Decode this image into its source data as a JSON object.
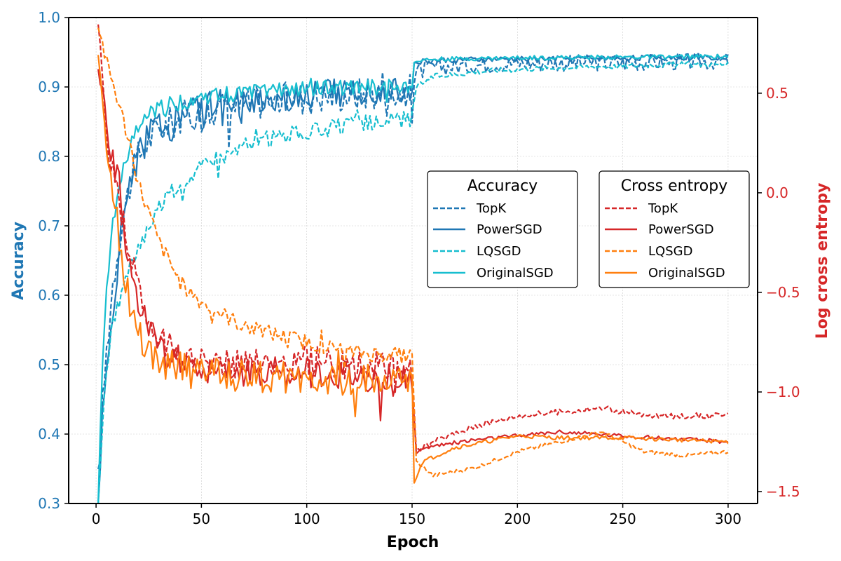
{
  "chart_data": {
    "type": "line",
    "xlabel": "Epoch",
    "y_left_label": "Accuracy",
    "y_right_label": "Log cross entropy",
    "xlim": [
      -13,
      314
    ],
    "ylim_left": [
      0.3,
      1.0
    ],
    "ylim_right": [
      -1.56,
      0.88
    ],
    "x_ticks": [
      0,
      50,
      100,
      150,
      200,
      250,
      300
    ],
    "y_left_ticks": [
      "0.3",
      "0.4",
      "0.5",
      "0.6",
      "0.7",
      "0.8",
      "0.9",
      "1.0"
    ],
    "y_right_ticks": [
      "0.5",
      "0.0",
      "−0.5",
      "−1.0",
      "−1.5"
    ],
    "grid": true,
    "legends": [
      {
        "title": "Accuracy",
        "placement": "center-right",
        "entries": [
          "TopK",
          "PowerSGD",
          "LQSGD",
          "OriginalSGD"
        ]
      },
      {
        "title": "Cross entropy",
        "placement": "right",
        "entries": [
          "TopK",
          "PowerSGD",
          "LQSGD",
          "OriginalSGD"
        ]
      }
    ],
    "colors": {
      "accuracy_axis": "#1f77b4",
      "entropy_axis": "#d62728",
      "accuracy_dark": "#1f77b4",
      "accuracy_light": "#17becf",
      "entropy_red": "#d62728",
      "entropy_orange": "#ff7f0e"
    },
    "series": [
      {
        "group": "Accuracy",
        "name": "TopK",
        "axis": "left",
        "color": "#1f77b4",
        "dash": "dashed",
        "points": [
          [
            1,
            0.33
          ],
          [
            3,
            0.44
          ],
          [
            5,
            0.52
          ],
          [
            8,
            0.62
          ],
          [
            12,
            0.7
          ],
          [
            16,
            0.76
          ],
          [
            20,
            0.8
          ],
          [
            25,
            0.825
          ],
          [
            30,
            0.84
          ],
          [
            40,
            0.855
          ],
          [
            50,
            0.865
          ],
          [
            60,
            0.87
          ],
          [
            70,
            0.875
          ],
          [
            80,
            0.88
          ],
          [
            100,
            0.885
          ],
          [
            120,
            0.89
          ],
          [
            149,
            0.895
          ],
          [
            150,
            0.895
          ],
          [
            152,
            0.92
          ],
          [
            160,
            0.928
          ],
          [
            180,
            0.932
          ],
          [
            200,
            0.934
          ],
          [
            250,
            0.935
          ],
          [
            300,
            0.937
          ]
        ],
        "noise": [
          0.025,
          0.012
        ]
      },
      {
        "group": "Accuracy",
        "name": "PowerSGD",
        "axis": "left",
        "color": "#1f77b4",
        "dash": "solid",
        "points": [
          [
            1,
            0.3
          ],
          [
            3,
            0.42
          ],
          [
            5,
            0.48
          ],
          [
            8,
            0.58
          ],
          [
            12,
            0.69
          ],
          [
            16,
            0.77
          ],
          [
            20,
            0.8
          ],
          [
            25,
            0.83
          ],
          [
            30,
            0.845
          ],
          [
            40,
            0.86
          ],
          [
            50,
            0.87
          ],
          [
            70,
            0.88
          ],
          [
            100,
            0.89
          ],
          [
            120,
            0.895
          ],
          [
            149,
            0.9
          ],
          [
            150,
            0.9
          ],
          [
            151,
            0.935
          ],
          [
            160,
            0.938
          ],
          [
            200,
            0.94
          ],
          [
            250,
            0.942
          ],
          [
            300,
            0.943
          ]
        ],
        "noise": [
          0.022,
          0.004
        ]
      },
      {
        "group": "Accuracy",
        "name": "LQSGD",
        "axis": "left",
        "color": "#17becf",
        "dash": "dashed",
        "points": [
          [
            1,
            0.3
          ],
          [
            3,
            0.4
          ],
          [
            5,
            0.5
          ],
          [
            8,
            0.56
          ],
          [
            12,
            0.6
          ],
          [
            16,
            0.64
          ],
          [
            20,
            0.67
          ],
          [
            25,
            0.7
          ],
          [
            30,
            0.73
          ],
          [
            40,
            0.76
          ],
          [
            50,
            0.785
          ],
          [
            60,
            0.8
          ],
          [
            70,
            0.815
          ],
          [
            80,
            0.825
          ],
          [
            100,
            0.835
          ],
          [
            120,
            0.845
          ],
          [
            149,
            0.855
          ],
          [
            150,
            0.855
          ],
          [
            152,
            0.9
          ],
          [
            160,
            0.915
          ],
          [
            180,
            0.922
          ],
          [
            200,
            0.926
          ],
          [
            240,
            0.93
          ],
          [
            250,
            0.93
          ],
          [
            260,
            0.932
          ],
          [
            300,
            0.933
          ]
        ],
        "noise": [
          0.012,
          0.004
        ]
      },
      {
        "group": "Accuracy",
        "name": "OriginalSGD",
        "axis": "left",
        "color": "#17becf",
        "dash": "solid",
        "points": [
          [
            1,
            0.3
          ],
          [
            3,
            0.5
          ],
          [
            5,
            0.62
          ],
          [
            8,
            0.7
          ],
          [
            12,
            0.77
          ],
          [
            16,
            0.81
          ],
          [
            20,
            0.84
          ],
          [
            25,
            0.86
          ],
          [
            30,
            0.87
          ],
          [
            40,
            0.878
          ],
          [
            50,
            0.885
          ],
          [
            70,
            0.892
          ],
          [
            100,
            0.897
          ],
          [
            149,
            0.9
          ],
          [
            150,
            0.9
          ],
          [
            151,
            0.937
          ],
          [
            160,
            0.94
          ],
          [
            200,
            0.942
          ],
          [
            250,
            0.943
          ],
          [
            300,
            0.944
          ]
        ],
        "noise": [
          0.012,
          0.003
        ]
      },
      {
        "group": "Cross entropy",
        "name": "TopK",
        "axis": "right",
        "color": "#d62728",
        "dash": "dashed",
        "points": [
          [
            1,
            0.8
          ],
          [
            3,
            0.55
          ],
          [
            5,
            0.3
          ],
          [
            8,
            0.1
          ],
          [
            12,
            -0.1
          ],
          [
            16,
            -0.3
          ],
          [
            20,
            -0.5
          ],
          [
            25,
            -0.65
          ],
          [
            30,
            -0.75
          ],
          [
            40,
            -0.8
          ],
          [
            50,
            -0.85
          ],
          [
            70,
            -0.85
          ],
          [
            100,
            -0.85
          ],
          [
            149,
            -0.88
          ],
          [
            150,
            -0.88
          ],
          [
            152,
            -1.3
          ],
          [
            160,
            -1.25
          ],
          [
            180,
            -1.17
          ],
          [
            200,
            -1.12
          ],
          [
            220,
            -1.1
          ],
          [
            240,
            -1.08
          ],
          [
            250,
            -1.1
          ],
          [
            260,
            -1.12
          ],
          [
            300,
            -1.12
          ]
        ],
        "noise": [
          0.08,
          0.015
        ]
      },
      {
        "group": "Cross entropy",
        "name": "PowerSGD",
        "axis": "right",
        "color": "#d62728",
        "dash": "solid",
        "points": [
          [
            1,
            0.7
          ],
          [
            3,
            0.5
          ],
          [
            5,
            0.3
          ],
          [
            8,
            0.15
          ],
          [
            12,
            -0.1
          ],
          [
            16,
            -0.35
          ],
          [
            20,
            -0.55
          ],
          [
            25,
            -0.7
          ],
          [
            30,
            -0.78
          ],
          [
            40,
            -0.85
          ],
          [
            50,
            -0.88
          ],
          [
            70,
            -0.9
          ],
          [
            100,
            -0.9
          ],
          [
            149,
            -0.95
          ],
          [
            150,
            -0.95
          ],
          [
            152,
            -1.3
          ],
          [
            160,
            -1.27
          ],
          [
            180,
            -1.24
          ],
          [
            200,
            -1.22
          ],
          [
            220,
            -1.2
          ],
          [
            250,
            -1.22
          ],
          [
            300,
            -1.25
          ]
        ],
        "noise": [
          0.08,
          0.01
        ]
      },
      {
        "group": "Cross entropy",
        "name": "LQSGD",
        "axis": "right",
        "color": "#ff7f0e",
        "dash": "dashed",
        "points": [
          [
            1,
            0.85
          ],
          [
            3,
            0.75
          ],
          [
            5,
            0.65
          ],
          [
            8,
            0.55
          ],
          [
            12,
            0.4
          ],
          [
            16,
            0.25
          ],
          [
            20,
            0.05
          ],
          [
            25,
            -0.1
          ],
          [
            30,
            -0.25
          ],
          [
            40,
            -0.45
          ],
          [
            50,
            -0.55
          ],
          [
            70,
            -0.67
          ],
          [
            100,
            -0.75
          ],
          [
            120,
            -0.8
          ],
          [
            149,
            -0.82
          ],
          [
            150,
            -0.82
          ],
          [
            152,
            -1.35
          ],
          [
            160,
            -1.42
          ],
          [
            180,
            -1.38
          ],
          [
            200,
            -1.3
          ],
          [
            220,
            -1.25
          ],
          [
            240,
            -1.2
          ],
          [
            250,
            -1.25
          ],
          [
            260,
            -1.3
          ],
          [
            280,
            -1.32
          ],
          [
            300,
            -1.3
          ]
        ],
        "noise": [
          0.04,
          0.01
        ]
      },
      {
        "group": "Cross entropy",
        "name": "OriginalSGD",
        "axis": "right",
        "color": "#ff7f0e",
        "dash": "solid",
        "points": [
          [
            1,
            0.7
          ],
          [
            3,
            0.45
          ],
          [
            5,
            0.25
          ],
          [
            8,
            0.0
          ],
          [
            12,
            -0.3
          ],
          [
            16,
            -0.55
          ],
          [
            20,
            -0.7
          ],
          [
            25,
            -0.8
          ],
          [
            30,
            -0.85
          ],
          [
            40,
            -0.88
          ],
          [
            50,
            -0.9
          ],
          [
            70,
            -0.92
          ],
          [
            100,
            -0.93
          ],
          [
            149,
            -0.95
          ],
          [
            150,
            -0.95
          ],
          [
            151,
            -1.45
          ],
          [
            155,
            -1.35
          ],
          [
            170,
            -1.28
          ],
          [
            190,
            -1.24
          ],
          [
            200,
            -1.22
          ],
          [
            220,
            -1.23
          ],
          [
            250,
            -1.23
          ],
          [
            300,
            -1.25
          ]
        ],
        "noise": [
          0.08,
          0.01
        ]
      }
    ]
  }
}
